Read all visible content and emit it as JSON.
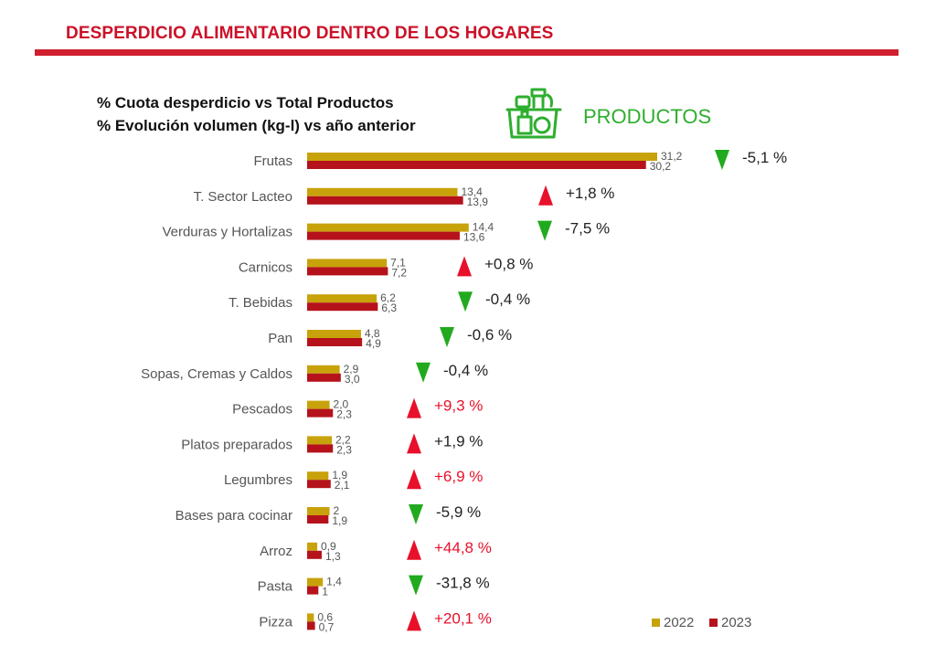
{
  "page": {
    "title": "DESPERDICIO ALIMENTARIO DENTRO DE LOS HOGARES",
    "subtitle_1": "% Cuota desperdicio vs Total Productos",
    "subtitle_2": "% Evolución volumen (kg-l)  vs año anterior",
    "section_label": "PRODUCTOS",
    "icon": "grocery-bag-icon",
    "colors": {
      "title": "#cc1128",
      "rule": "#d0202f",
      "section": "#2eae2e",
      "up": "#e8102a",
      "down": "#22aa1f"
    }
  },
  "chart_data": {
    "type": "bar",
    "orientation": "horizontal",
    "categories": [
      "Frutas",
      "T. Sector Lacteo",
      "Verduras y Hortalizas",
      "Carnicos",
      "T. Bebidas",
      "Pan",
      "Sopas, Cremas y Caldos",
      "Pescados",
      "Platos preparados",
      "Legumbres",
      "Bases para cocinar",
      "Arroz",
      "Pasta",
      "Pizza"
    ],
    "series": [
      {
        "name": "2022",
        "color": "#c8a20b",
        "values": [
          31.2,
          13.4,
          14.4,
          7.1,
          6.2,
          4.8,
          2.9,
          2.0,
          2.2,
          1.9,
          2,
          0.9,
          1.4,
          0.6
        ],
        "labels": [
          "31,2",
          "13,4",
          "14,4",
          "7,1",
          "6,2",
          "4,8",
          "2,9",
          "2,0",
          "2,2",
          "1,9",
          "2",
          "0,9",
          "1,4",
          "0,6"
        ]
      },
      {
        "name": "2023",
        "color": "#b5121b",
        "values": [
          30.2,
          13.9,
          13.6,
          7.2,
          6.3,
          4.9,
          3.0,
          2.3,
          2.3,
          2.1,
          1.9,
          1.3,
          1,
          0.7
        ],
        "labels": [
          "30,2",
          "13,9",
          "13,6",
          "7,2",
          "6,3",
          "4,9",
          "3,0",
          "2,3",
          "2,3",
          "2,1",
          "1,9",
          "1,3",
          "1",
          "0,7"
        ]
      }
    ],
    "evolution": [
      {
        "value": -5.1,
        "label": "-5,1 %",
        "direction": "down",
        "highlight": false
      },
      {
        "value": 1.8,
        "label": "+1,8  %",
        "direction": "up",
        "highlight": false
      },
      {
        "value": -7.5,
        "label": "-7,5  %",
        "direction": "down",
        "highlight": false
      },
      {
        "value": 0.8,
        "label": "+0,8  %",
        "direction": "up",
        "highlight": false
      },
      {
        "value": -0.4,
        "label": "-0,4  %",
        "direction": "down",
        "highlight": false
      },
      {
        "value": -0.6,
        "label": "-0,6  %",
        "direction": "down",
        "highlight": false
      },
      {
        "value": -0.4,
        "label": "-0,4  %",
        "direction": "down",
        "highlight": false
      },
      {
        "value": 9.3,
        "label": "+9,3  %",
        "direction": "up",
        "highlight": true
      },
      {
        "value": 1.9,
        "label": "+1,9  %",
        "direction": "up",
        "highlight": false
      },
      {
        "value": 6.9,
        "label": "+6,9  %",
        "direction": "up",
        "highlight": true
      },
      {
        "value": -5.9,
        "label": "-5,9  %",
        "direction": "down",
        "highlight": false
      },
      {
        "value": 44.8,
        "label": "+44,8  %",
        "direction": "up",
        "highlight": true
      },
      {
        "value": -31.8,
        "label": "-31,8  %",
        "direction": "down",
        "highlight": false
      },
      {
        "value": 20.1,
        "label": "+20,1  %",
        "direction": "up",
        "highlight": true
      }
    ],
    "xlim": [
      0,
      31.2
    ],
    "grid": false,
    "legend": {
      "position": "bottom-right"
    }
  }
}
